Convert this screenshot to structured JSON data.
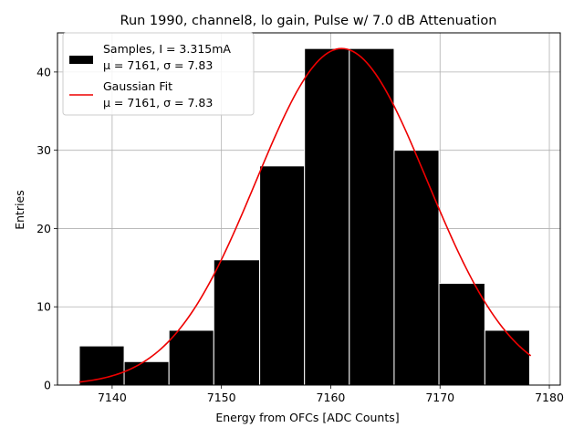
{
  "chart_data": {
    "type": "bar",
    "title": "Run 1990, channel8, lo gain, Pulse w/ 7.0 dB Attenuation",
    "xlabel": "Energy from OFCs [ADC Counts]",
    "ylabel": "Entries",
    "xlim": [
      7135,
      7181
    ],
    "ylim": [
      0,
      45
    ],
    "xticks": [
      7140,
      7150,
      7160,
      7170,
      7180
    ],
    "yticks": [
      0,
      10,
      20,
      30,
      40
    ],
    "grid": true,
    "legend_position": "top-left",
    "bins": [
      {
        "left": 7137.0,
        "right": 7141.1,
        "value": 5
      },
      {
        "left": 7141.1,
        "right": 7145.2,
        "value": 3
      },
      {
        "left": 7145.2,
        "right": 7149.3,
        "value": 7
      },
      {
        "left": 7149.3,
        "right": 7153.5,
        "value": 16
      },
      {
        "left": 7153.5,
        "right": 7157.6,
        "value": 28
      },
      {
        "left": 7157.6,
        "right": 7161.7,
        "value": 43
      },
      {
        "left": 7161.7,
        "right": 7165.8,
        "value": 43
      },
      {
        "left": 7165.8,
        "right": 7169.9,
        "value": 30
      },
      {
        "left": 7169.9,
        "right": 7174.1,
        "value": 13
      },
      {
        "left": 7174.1,
        "right": 7178.2,
        "value": 7
      }
    ],
    "series": [
      {
        "name": "Samples, I = 3.315mA",
        "stats": "μ = 7161, σ = 7.83",
        "kind": "histogram",
        "color": "#000000"
      },
      {
        "name": "Gaussian Fit",
        "stats": "μ = 7161, σ = 7.83",
        "kind": "line",
        "color": "#ee0000",
        "fit": {
          "amplitude": 43,
          "mu": 7161,
          "sigma": 7.83,
          "x_start": 7137.0,
          "x_end": 7178.3
        }
      }
    ]
  }
}
